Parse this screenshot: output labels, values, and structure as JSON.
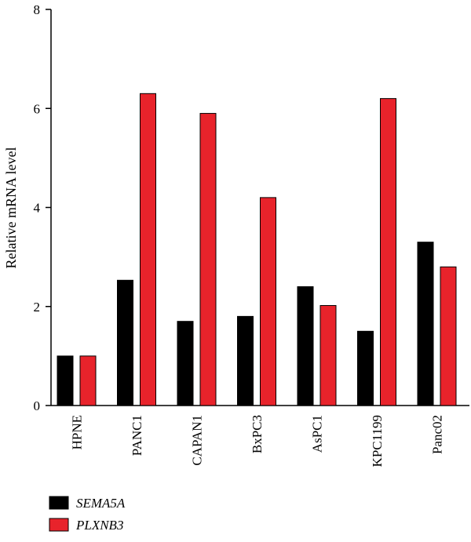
{
  "chart_data": {
    "type": "bar",
    "categories": [
      "HPNE",
      "PANC1",
      "CAPAN1",
      "BxPC3",
      "AsPC1",
      "KPC1199",
      "Panc02"
    ],
    "series": [
      {
        "name": "SEMA5A",
        "color": "#000000",
        "values": [
          1.0,
          2.53,
          1.7,
          1.8,
          2.4,
          1.5,
          3.3
        ]
      },
      {
        "name": "PLXNB3",
        "color": "#e8232b",
        "values": [
          1.0,
          6.3,
          5.9,
          4.2,
          2.02,
          6.2,
          2.8
        ]
      }
    ],
    "ylabel": "Relative mRNA level",
    "ylim": [
      0,
      8
    ],
    "yticks": [
      "0",
      "2",
      "4",
      "6",
      "8"
    ],
    "grid": false,
    "legend_position": "bottom-left"
  }
}
